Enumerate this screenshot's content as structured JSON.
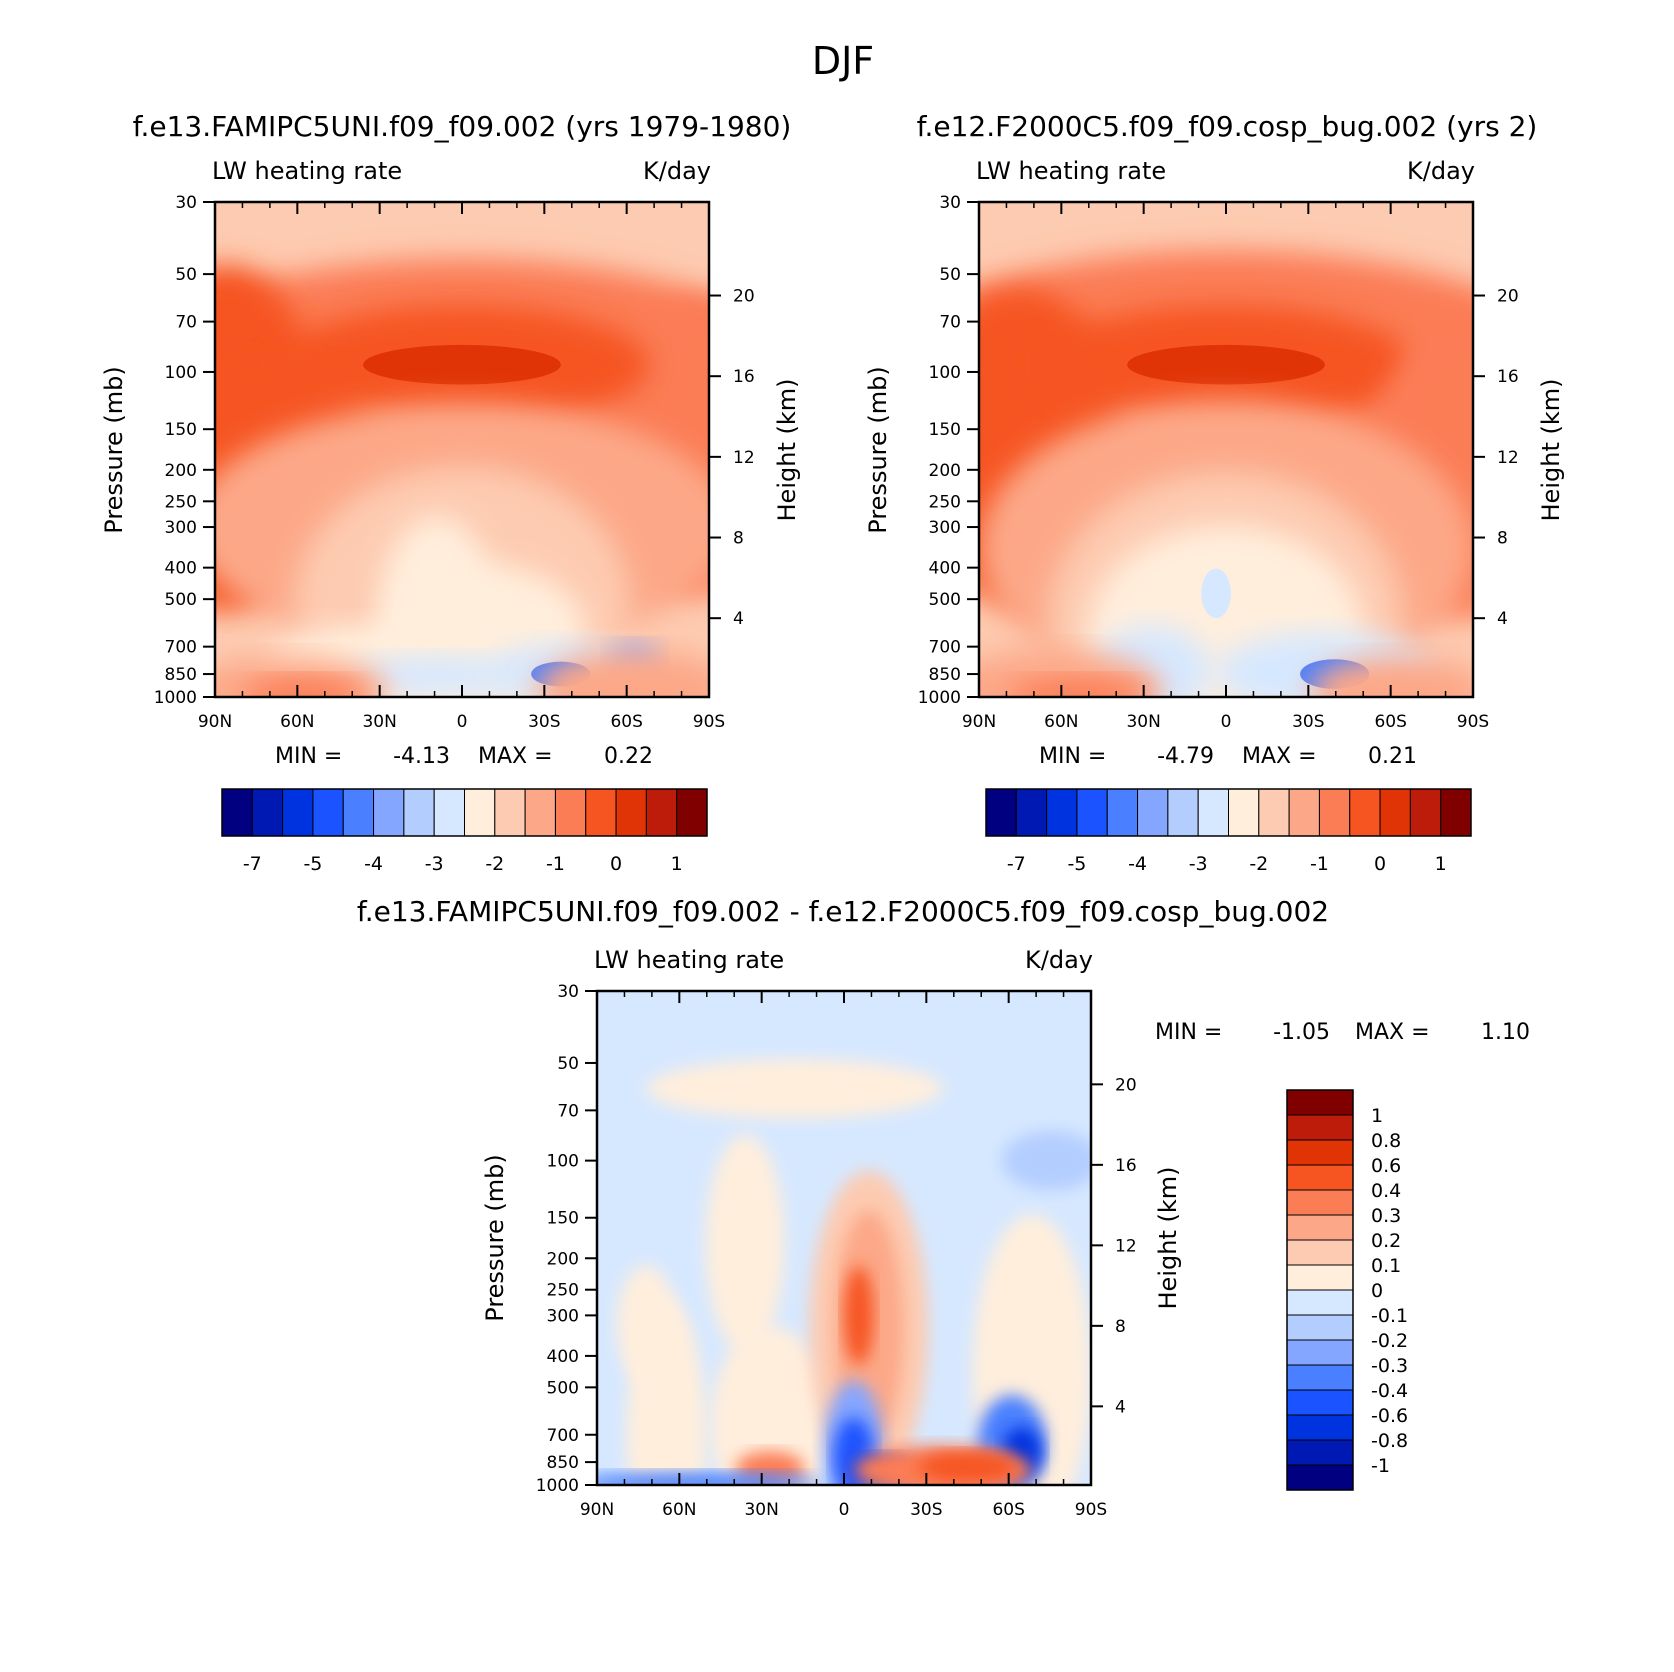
{
  "figure": {
    "main_title": "DJF"
  },
  "colors": {
    "abs_scale": [
      "#000080",
      "#0019b3",
      "#0033e0",
      "#1a53ff",
      "#4a80ff",
      "#85a6ff",
      "#b3cdff",
      "#d6e8ff",
      "#ffeedc",
      "#fdcbb1",
      "#fca888",
      "#fb7d56",
      "#f65420",
      "#e03406",
      "#bd1c0b",
      "#800000"
    ],
    "diff_scale": [
      "#000080",
      "#0019b3",
      "#0033e0",
      "#1a53ff",
      "#4a80ff",
      "#85a6ff",
      "#b3cdff",
      "#d6e8ff",
      "#ffeedc",
      "#fdcbb1",
      "#fca888",
      "#fb7d56",
      "#f65420",
      "#e03406",
      "#bd1c0b",
      "#800000"
    ]
  },
  "chart_data": [
    {
      "type": "heatmap",
      "case_title": "f.e13.FAMIPC5UNI.f09_f09.002 (yrs 1979-1980)",
      "left_label": "LW heating rate",
      "right_label": "K/day",
      "ylabel": "Pressure (mb)",
      "ylabel_right": "Height (km)",
      "x_ticks": [
        "90N",
        "60N",
        "30N",
        "0",
        "30S",
        "60S",
        "90S"
      ],
      "y_ticks": [
        30,
        50,
        70,
        100,
        150,
        200,
        250,
        300,
        400,
        500,
        700,
        850,
        1000
      ],
      "y_right_ticks": [
        20,
        16,
        12,
        8,
        4
      ],
      "min_label": "MIN =",
      "min_value": "-4.13",
      "max_label": "MAX =",
      "max_value": "0.22",
      "colorbar_labels": [
        "-7",
        "-5",
        "-4",
        "-3",
        "-2",
        "-1",
        "0",
        "1"
      ],
      "variant": 1
    },
    {
      "type": "heatmap",
      "case_title": "f.e12.F2000C5.f09_f09.cosp_bug.002 (yrs 2)",
      "left_label": "LW heating rate",
      "right_label": "K/day",
      "ylabel": "Pressure (mb)",
      "ylabel_right": "Height (km)",
      "x_ticks": [
        "90N",
        "60N",
        "30N",
        "0",
        "30S",
        "60S",
        "90S"
      ],
      "y_ticks": [
        30,
        50,
        70,
        100,
        150,
        200,
        250,
        300,
        400,
        500,
        700,
        850,
        1000
      ],
      "y_right_ticks": [
        20,
        16,
        12,
        8,
        4
      ],
      "min_label": "MIN =",
      "min_value": "-4.79",
      "max_label": "MAX =",
      "max_value": "0.21",
      "colorbar_labels": [
        "-7",
        "-5",
        "-4",
        "-3",
        "-2",
        "-1",
        "0",
        "1"
      ],
      "variant": 2
    },
    {
      "type": "heatmap",
      "case_title": "f.e13.FAMIPC5UNI.f09_f09.002 - f.e12.F2000C5.f09_f09.cosp_bug.002",
      "left_label": "LW heating rate",
      "right_label": "K/day",
      "ylabel": "Pressure (mb)",
      "ylabel_right": "Height (km)",
      "x_ticks": [
        "90N",
        "60N",
        "30N",
        "0",
        "30S",
        "60S",
        "90S"
      ],
      "y_ticks": [
        30,
        50,
        70,
        100,
        150,
        200,
        250,
        300,
        400,
        500,
        700,
        850,
        1000
      ],
      "y_right_ticks": [
        20,
        16,
        12,
        8,
        4
      ],
      "min_label": "MIN =",
      "min_value": "-1.05",
      "max_label": "MAX =",
      "max_value": "1.10",
      "colorbar_labels": [
        "1",
        "0.8",
        "0.6",
        "0.4",
        "0.3",
        "0.2",
        "0.1",
        "0",
        "-0.1",
        "-0.2",
        "-0.3",
        "-0.4",
        "-0.6",
        "-0.8",
        "-1"
      ],
      "variant": 3
    }
  ]
}
